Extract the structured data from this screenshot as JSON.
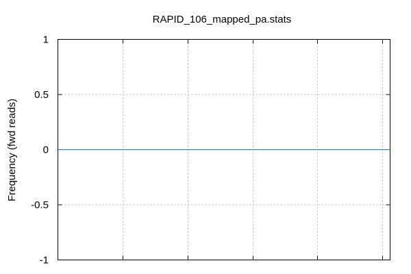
{
  "chart_data": {
    "type": "line",
    "title": "RAPID_106_mapped_pa.stats",
    "xlabel": "",
    "ylabel": "Frequency (fwd reads)",
    "ylim": [
      -1,
      1
    ],
    "yticks": [
      1,
      0.5,
      0,
      -0.5,
      -1
    ],
    "ytick_labels": [
      "1",
      "0.5",
      "0",
      "-0.5",
      "-1"
    ],
    "grid": true,
    "series": [
      {
        "color": "#1f77b4",
        "x": [
          0,
          1
        ],
        "values": [
          0,
          0
        ]
      }
    ]
  }
}
